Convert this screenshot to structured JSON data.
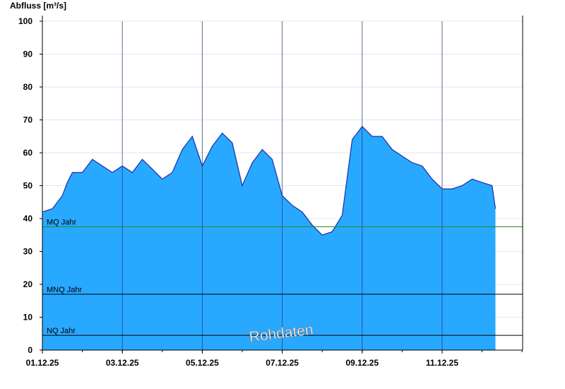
{
  "chart_data": {
    "type": "area",
    "ylabel": "Abfluss [m³/s]",
    "ylim": [
      0,
      100
    ],
    "xlim": [
      "01.12.25",
      "13.12.25"
    ],
    "y_ticks": [
      "0",
      "10",
      "20",
      "30",
      "40",
      "50",
      "60",
      "70",
      "80",
      "90",
      "100"
    ],
    "x_ticks": [
      "01.12.25",
      "03.12.25",
      "05.12.25",
      "07.12.25",
      "09.12.25",
      "11.12.25"
    ],
    "grid": "horizontal light, vertical every 2 days",
    "watermark": "Rohdaten",
    "colors": {
      "fill": "#29a8ff",
      "line": "#1a2ea8",
      "mq_line": "#228b22",
      "ref_line": "#000000"
    },
    "reference_lines": [
      {
        "label": "MQ Jahr",
        "value": 37.5
      },
      {
        "label": "MNQ Jahr",
        "value": 17.0
      },
      {
        "label": "NQ Jahr",
        "value": 4.5
      }
    ],
    "series": [
      {
        "x": [
          "01.12.25 00:00",
          "01.12.25 06:00",
          "01.12.25 12:00",
          "01.12.25 15:00",
          "01.12.25 18:00",
          "02.12.25 00:00",
          "02.12.25 06:00",
          "02.12.25 12:00",
          "02.12.25 18:00",
          "03.12.25 00:00",
          "03.12.25 06:00",
          "03.12.25 12:00",
          "03.12.25 18:00",
          "04.12.25 00:00",
          "04.12.25 06:00",
          "04.12.25 12:00",
          "04.12.25 18:00",
          "05.12.25 00:00",
          "05.12.25 06:00",
          "05.12.25 12:00",
          "05.12.25 18:00",
          "06.12.25 00:00",
          "06.12.25 06:00",
          "06.12.25 12:00",
          "06.12.25 18:00",
          "07.12.25 00:00",
          "07.12.25 06:00",
          "07.12.25 12:00",
          "07.12.25 18:00",
          "08.12.25 00:00",
          "08.12.25 06:00",
          "08.12.25 12:00",
          "08.12.25 18:00",
          "09.12.25 00:00",
          "09.12.25 06:00",
          "09.12.25 12:00",
          "09.12.25 18:00",
          "10.12.25 00:00",
          "10.12.25 06:00",
          "10.12.25 12:00",
          "10.12.25 18:00",
          "11.12.25 00:00",
          "11.12.25 06:00",
          "11.12.25 12:00",
          "11.12.25 18:00",
          "12.12.25 00:00",
          "12.12.25 06:00",
          "12.12.25 08:00"
        ],
        "y": [
          42,
          43,
          47,
          51,
          54,
          54,
          58,
          56,
          54,
          56,
          54,
          58,
          55,
          52,
          54,
          61,
          65,
          56,
          62,
          66,
          63,
          50,
          57,
          61,
          58,
          47,
          44,
          42,
          38,
          35,
          36,
          41,
          64,
          68,
          65,
          65,
          61,
          59,
          57,
          56,
          52,
          49,
          49,
          50,
          52,
          51,
          50,
          43
        ]
      }
    ]
  }
}
